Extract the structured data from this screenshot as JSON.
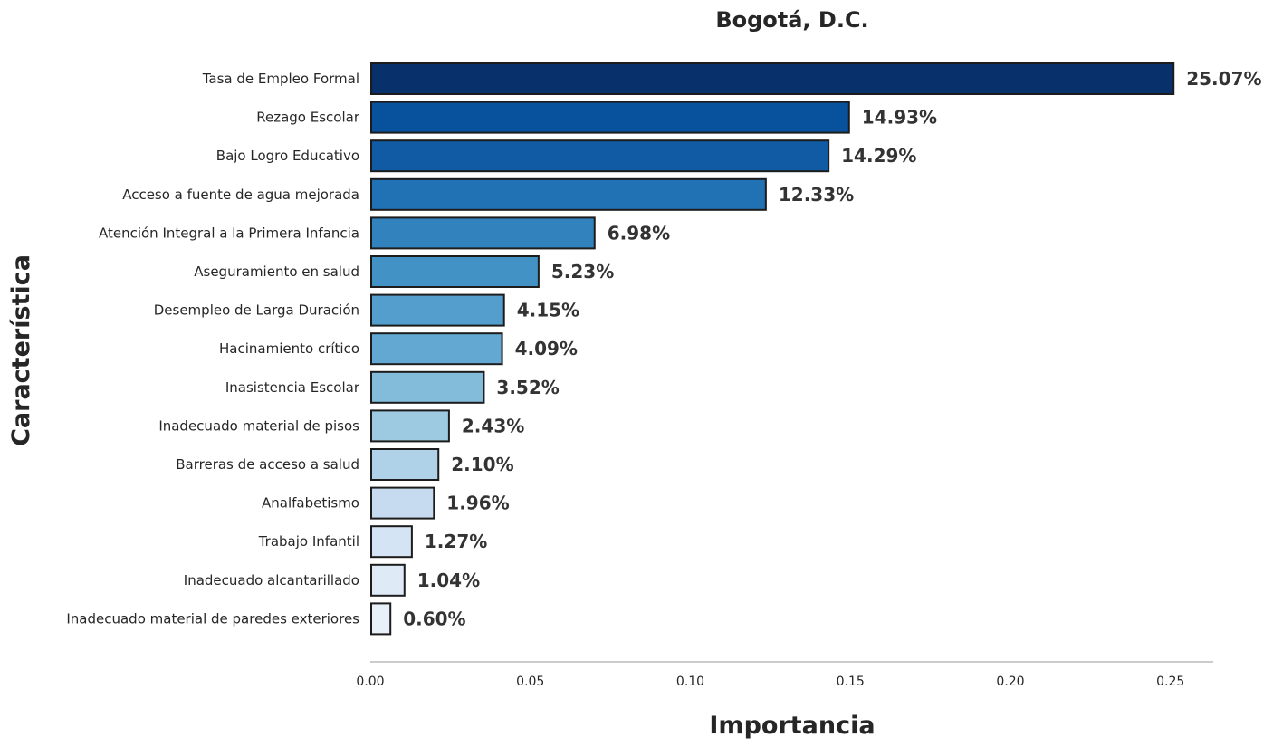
{
  "chart_data": {
    "type": "bar",
    "orientation": "horizontal",
    "title": "Bogotá, D.C.",
    "xlabel": "Importancia",
    "ylabel": "Característica",
    "xlim": [
      0,
      0.263
    ],
    "xticks": [
      0.0,
      0.05,
      0.1,
      0.15,
      0.2,
      0.25
    ],
    "xtick_labels": [
      "0.00",
      "0.05",
      "0.10",
      "0.15",
      "0.20",
      "0.25"
    ],
    "grid": false,
    "categories": [
      "Tasa de Empleo Formal",
      "Rezago Escolar",
      "Bajo Logro Educativo",
      "Acceso a fuente de agua mejorada ",
      "Atención Integral a la Primera Infancia ",
      "Aseguramiento en salud ",
      "Desempleo de Larga Duración",
      "Hacinamiento crítico",
      "Inasistencia Escolar",
      "Inadecuado material de pisos",
      "Barreras de acceso a salud",
      "Analfabetismo",
      "Trabajo Infantil",
      "Inadecuado alcantarillado ",
      "Inadecuado material de paredes exteriores"
    ],
    "values": [
      0.2507,
      0.1493,
      0.1429,
      0.1233,
      0.0698,
      0.0523,
      0.0415,
      0.0409,
      0.0352,
      0.0243,
      0.021,
      0.0196,
      0.0127,
      0.0104,
      0.006
    ],
    "value_labels": [
      "25.07%",
      "14.93%",
      "14.29%",
      "12.33%",
      "6.98%",
      "5.23%",
      "4.15%",
      "4.09%",
      "3.52%",
      "2.43%",
      "2.10%",
      "1.96%",
      "1.27%",
      "1.04%",
      "0.60%"
    ],
    "colors": [
      "#08306b",
      "#08519c",
      "#105ba4",
      "#2171b5",
      "#3282be",
      "#4292c6",
      "#539ecd",
      "#63a8d3",
      "#83bbdb",
      "#9ecae1",
      "#b0d2e8",
      "#c6dbef",
      "#d4e4f4",
      "#deebf7",
      "#e8f1fa"
    ],
    "bar_edge_color": "#1c1c1c"
  }
}
